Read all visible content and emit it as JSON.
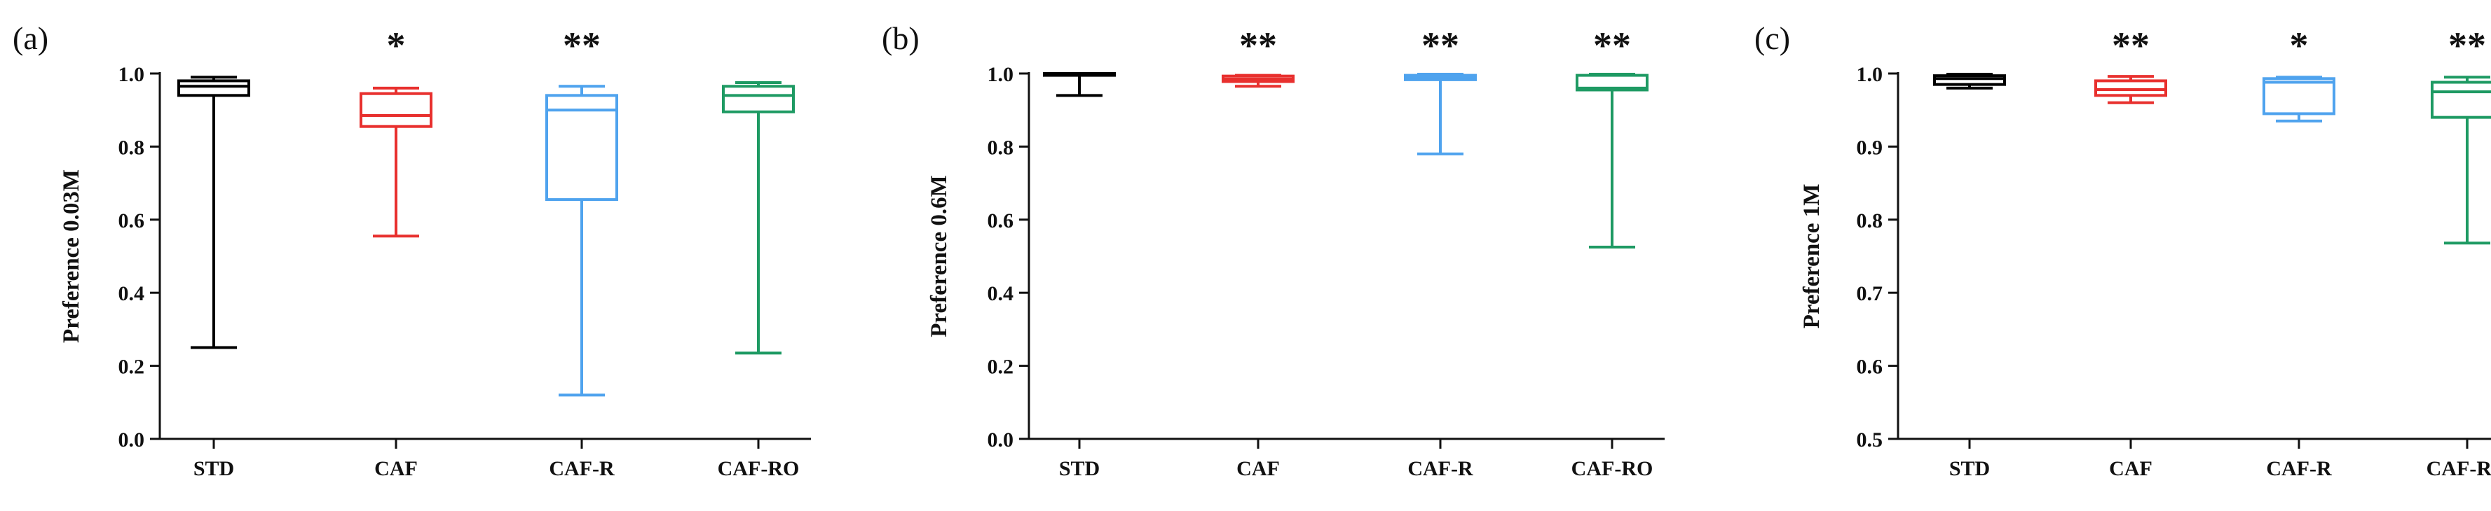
{
  "chart_data": [
    {
      "panel_label": "(a)",
      "type": "boxplot",
      "ylabel": "Preference 0.03M",
      "ylim": [
        0.0,
        1.0
      ],
      "yticks": [
        0.0,
        0.2,
        0.4,
        0.6,
        0.8,
        1.0
      ],
      "ytick_labels": [
        "0.0",
        "0.2",
        "0.4",
        "0.6",
        "0.8",
        "1.0"
      ],
      "categories": [
        "STD",
        "CAF",
        "CAF-R",
        "CAF-RO"
      ],
      "series": [
        {
          "name": "STD",
          "color": "#000000",
          "min": 0.25,
          "q1": 0.94,
          "median": 0.965,
          "q3": 0.98,
          "max": 0.99,
          "significance": ""
        },
        {
          "name": "CAF",
          "color": "#e8302e",
          "min": 0.555,
          "q1": 0.855,
          "median": 0.885,
          "q3": 0.945,
          "max": 0.96,
          "significance": "*"
        },
        {
          "name": "CAF-R",
          "color": "#4fa3ee",
          "min": 0.12,
          "q1": 0.655,
          "median": 0.9,
          "q3": 0.94,
          "max": 0.965,
          "significance": "**"
        },
        {
          "name": "CAF-RO",
          "color": "#1e9a63",
          "min": 0.235,
          "q1": 0.895,
          "median": 0.94,
          "q3": 0.965,
          "max": 0.975,
          "significance": ""
        }
      ]
    },
    {
      "panel_label": "(b)",
      "type": "boxplot",
      "ylabel": "Preference 0.6M",
      "ylim": [
        0.0,
        1.0
      ],
      "yticks": [
        0.0,
        0.2,
        0.4,
        0.6,
        0.8,
        1.0
      ],
      "ytick_labels": [
        "0.0",
        "0.2",
        "0.4",
        "0.6",
        "0.8",
        "1.0"
      ],
      "categories": [
        "STD",
        "CAF",
        "CAF-R",
        "CAF-RO"
      ],
      "series": [
        {
          "name": "STD",
          "color": "#000000",
          "min": 0.94,
          "q1": 0.995,
          "median": 0.998,
          "q3": 1.0,
          "max": 1.0,
          "significance": ""
        },
        {
          "name": "CAF",
          "color": "#e8302e",
          "min": 0.965,
          "q1": 0.978,
          "median": 0.985,
          "q3": 0.993,
          "max": 0.995,
          "significance": "**"
        },
        {
          "name": "CAF-R",
          "color": "#4fa3ee",
          "min": 0.78,
          "q1": 0.983,
          "median": 0.99,
          "q3": 0.995,
          "max": 0.998,
          "significance": "**"
        },
        {
          "name": "CAF-RO",
          "color": "#1e9a63",
          "min": 0.525,
          "q1": 0.955,
          "median": 0.96,
          "q3": 0.995,
          "max": 0.998,
          "significance": "**"
        }
      ]
    },
    {
      "panel_label": "(c)",
      "type": "boxplot",
      "ylabel": "Preference 1M",
      "ylim": [
        0.5,
        1.0
      ],
      "yticks": [
        0.5,
        0.6,
        0.7,
        0.8,
        0.9,
        1.0
      ],
      "ytick_labels": [
        "0.5",
        "0.6",
        "0.7",
        "0.8",
        "0.9",
        "1.0"
      ],
      "categories": [
        "STD",
        "CAF",
        "CAF-R",
        "CAF-RO"
      ],
      "series": [
        {
          "name": "STD",
          "color": "#000000",
          "min": 0.98,
          "q1": 0.985,
          "median": 0.993,
          "q3": 0.997,
          "max": 0.999,
          "significance": ""
        },
        {
          "name": "CAF",
          "color": "#e8302e",
          "min": 0.96,
          "q1": 0.97,
          "median": 0.978,
          "q3": 0.99,
          "max": 0.996,
          "significance": "**"
        },
        {
          "name": "CAF-R",
          "color": "#4fa3ee",
          "min": 0.935,
          "q1": 0.945,
          "median": 0.988,
          "q3": 0.993,
          "max": 0.995,
          "significance": "*"
        },
        {
          "name": "CAF-RO",
          "color": "#1e9a63",
          "min": 0.768,
          "q1": 0.94,
          "median": 0.975,
          "q3": 0.988,
          "max": 0.995,
          "significance": "**"
        }
      ]
    }
  ]
}
